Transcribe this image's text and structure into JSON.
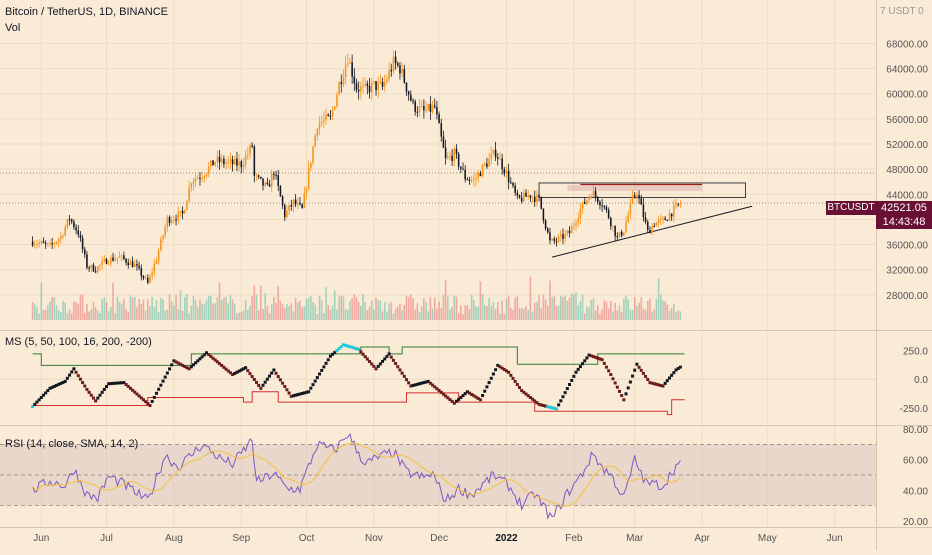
{
  "header": {
    "symbol_title": "Bitcoin / TetherUS, 1D, BINANCE",
    "vol_label": "Vol",
    "currency_label": "USDT"
  },
  "indicators": {
    "ms_label": "MS (5, 50, 100, 16, 200, -200)",
    "rsi_label": "RSI (14, close, SMA, 14, 2)"
  },
  "last_price": {
    "tag": "BTCUSDT",
    "value": "42521.05",
    "countdown": "14:43:48"
  },
  "colors": {
    "background": "#faebd7",
    "candle_up": "#f7941d",
    "candle_down": "#131722",
    "vol_up": "#5dbba4",
    "vol_down": "#e57373",
    "ms_upper": "#2e7d32",
    "ms_lower": "#d32f2f",
    "rsi_line": "#7e57c2",
    "rsi_ma": "#f5c33b",
    "highlight": "#26c6da",
    "price_tag": "#6b1035"
  },
  "chart_data": [
    {
      "type": "candlestick",
      "title": "Bitcoin / TetherUS, 1D, BINANCE",
      "y_axis_ticks": [
        "68000.00",
        "64000.00",
        "60000.00",
        "56000.00",
        "52000.00",
        "48000.00",
        "44000.00",
        "40000.00",
        "36000.00",
        "32000.00",
        "28000.00"
      ],
      "x_axis_ticks": [
        "Jun",
        "Jul",
        "Aug",
        "Sep",
        "Oct",
        "Nov",
        "Dec",
        "2022",
        "Feb",
        "Mar",
        "Apr",
        "May",
        "Jun"
      ],
      "ylim": [
        24000,
        73000
      ],
      "close_path": [
        [
          "2021-05-28",
          36500
        ],
        [
          "2021-06-05",
          35700
        ],
        [
          "2021-06-10",
          37300
        ],
        [
          "2021-06-14",
          40200
        ],
        [
          "2021-06-18",
          37900
        ],
        [
          "2021-06-22",
          32600
        ],
        [
          "2021-06-26",
          32100
        ],
        [
          "2021-07-01",
          33500
        ],
        [
          "2021-07-07",
          34000
        ],
        [
          "2021-07-14",
          32700
        ],
        [
          "2021-07-20",
          29800
        ],
        [
          "2021-07-24",
          33800
        ],
        [
          "2021-07-29",
          40000
        ],
        [
          "2021-08-05",
          40800
        ],
        [
          "2021-08-09",
          46300
        ],
        [
          "2021-08-14",
          47100
        ],
        [
          "2021-08-20",
          49300
        ],
        [
          "2021-08-27",
          48900
        ],
        [
          "2021-09-01",
          48800
        ],
        [
          "2021-09-06",
          51700
        ],
        [
          "2021-09-07",
          46800
        ],
        [
          "2021-09-13",
          44900
        ],
        [
          "2021-09-16",
          47700
        ],
        [
          "2021-09-21",
          40700
        ],
        [
          "2021-09-25",
          42700
        ],
        [
          "2021-09-29",
          41500
        ],
        [
          "2021-10-02",
          47600
        ],
        [
          "2021-10-06",
          55300
        ],
        [
          "2021-10-12",
          56000
        ],
        [
          "2021-10-16",
          61500
        ],
        [
          "2021-10-20",
          65900
        ],
        [
          "2021-10-24",
          61000
        ],
        [
          "2021-10-28",
          60600
        ],
        [
          "2021-11-01",
          61300
        ],
        [
          "2021-11-05",
          61000
        ],
        [
          "2021-11-10",
          64900
        ],
        [
          "2021-11-13",
          64100
        ],
        [
          "2021-11-19",
          58100
        ],
        [
          "2021-11-24",
          57100
        ],
        [
          "2021-11-29",
          57800
        ],
        [
          "2021-12-04",
          49400
        ],
        [
          "2021-12-08",
          50400
        ],
        [
          "2021-12-13",
          46700
        ],
        [
          "2021-12-17",
          46200
        ],
        [
          "2021-12-22",
          48600
        ],
        [
          "2021-12-27",
          50700
        ],
        [
          "2022-01-01",
          47300
        ],
        [
          "2022-01-06",
          43100
        ],
        [
          "2022-01-12",
          43900
        ],
        [
          "2022-01-16",
          43100
        ],
        [
          "2022-01-21",
          36400
        ],
        [
          "2022-01-24",
          36600
        ],
        [
          "2022-01-30",
          37900
        ],
        [
          "2022-02-04",
          41600
        ],
        [
          "2022-02-09",
          44400
        ],
        [
          "2022-02-14",
          42600
        ],
        [
          "2022-02-17",
          40500
        ],
        [
          "2022-02-21",
          37000
        ],
        [
          "2022-02-24",
          38300
        ],
        [
          "2022-02-28",
          43200
        ],
        [
          "2022-03-02",
          44400
        ],
        [
          "2022-03-07",
          38000
        ],
        [
          "2022-03-10",
          39400
        ],
        [
          "2022-03-14",
          39700
        ],
        [
          "2022-03-18",
          41200
        ],
        [
          "2022-03-22",
          42521
        ]
      ],
      "horizontal_levels": [
        47400,
        42600
      ],
      "resistance_box": [
        43500,
        45800
      ],
      "triangle_support": [
        [
          "2022-01-22",
          34000
        ],
        [
          "2022-04-24",
          42100
        ]
      ]
    },
    {
      "type": "line",
      "title": "MS (5, 50, 100, 16, 200, -200)",
      "y_axis_ticks": [
        "250.0",
        "0.0",
        "-250.0"
      ],
      "ylim": [
        -400,
        420
      ],
      "upper_band_steps": [
        [
          "2021-05-28",
          220
        ],
        [
          "2021-06-01",
          120
        ],
        [
          "2021-08-09",
          220
        ],
        [
          "2021-10-24",
          220
        ],
        [
          "2021-10-26",
          280
        ],
        [
          "2021-11-08",
          220
        ],
        [
          "2021-11-14",
          280
        ],
        [
          "2022-01-04",
          280
        ],
        [
          "2022-01-06",
          130
        ],
        [
          "2022-02-12",
          220
        ],
        [
          "2022-03-24",
          220
        ]
      ],
      "lower_band_steps": [
        [
          "2021-05-28",
          -230
        ],
        [
          "2021-07-20",
          -160
        ],
        [
          "2021-09-02",
          -200
        ],
        [
          "2021-09-06",
          -110
        ],
        [
          "2021-09-18",
          -200
        ],
        [
          "2021-11-16",
          -120
        ],
        [
          "2021-12-10",
          -200
        ],
        [
          "2022-01-14",
          -280
        ],
        [
          "2022-03-16",
          -310
        ],
        [
          "2022-03-18",
          -180
        ],
        [
          "2022-03-24",
          -180
        ]
      ],
      "oscillator_waypoints": [
        [
          "2021-05-28",
          -240
        ],
        [
          "2021-06-05",
          -80
        ],
        [
          "2021-06-12",
          -20
        ],
        [
          "2021-06-16",
          90
        ],
        [
          "2021-06-22",
          -90
        ],
        [
          "2021-06-26",
          -190
        ],
        [
          "2021-07-02",
          -40
        ],
        [
          "2021-07-09",
          -30
        ],
        [
          "2021-07-21",
          -230
        ],
        [
          "2021-08-01",
          160
        ],
        [
          "2021-08-08",
          90
        ],
        [
          "2021-08-16",
          230
        ],
        [
          "2021-08-28",
          40
        ],
        [
          "2021-09-03",
          100
        ],
        [
          "2021-09-10",
          -80
        ],
        [
          "2021-09-16",
          80
        ],
        [
          "2021-09-24",
          -150
        ],
        [
          "2021-10-02",
          -110
        ],
        [
          "2021-10-12",
          200
        ],
        [
          "2021-10-18",
          300
        ],
        [
          "2021-10-25",
          260
        ],
        [
          "2021-11-02",
          90
        ],
        [
          "2021-11-08",
          220
        ],
        [
          "2021-11-18",
          -60
        ],
        [
          "2021-11-26",
          -20
        ],
        [
          "2021-12-08",
          -210
        ],
        [
          "2021-12-14",
          -110
        ],
        [
          "2021-12-20",
          -180
        ],
        [
          "2021-12-28",
          120
        ],
        [
          "2022-01-02",
          60
        ],
        [
          "2022-01-08",
          -100
        ],
        [
          "2022-01-16",
          -220
        ],
        [
          "2022-01-24",
          -260
        ],
        [
          "2022-02-02",
          60
        ],
        [
          "2022-02-08",
          210
        ],
        [
          "2022-02-14",
          170
        ],
        [
          "2022-02-18",
          40
        ],
        [
          "2022-02-24",
          -180
        ],
        [
          "2022-03-02",
          130
        ],
        [
          "2022-03-08",
          -30
        ],
        [
          "2022-03-14",
          -60
        ],
        [
          "2022-03-20",
          80
        ],
        [
          "2022-03-24",
          130
        ]
      ]
    },
    {
      "type": "line",
      "title": "RSI (14, close, SMA, 14, 2)",
      "y_axis_ticks": [
        "80.00",
        "60.00",
        "40.00",
        "20.00"
      ],
      "ylim": [
        16,
        82
      ],
      "bands": [
        70,
        50,
        30
      ],
      "rsi_waypoints": [
        [
          "2021-05-28",
          40
        ],
        [
          "2021-06-05",
          46
        ],
        [
          "2021-06-12",
          43
        ],
        [
          "2021-06-16",
          54
        ],
        [
          "2021-06-22",
          37
        ],
        [
          "2021-06-27",
          35
        ],
        [
          "2021-07-02",
          49
        ],
        [
          "2021-07-09",
          44
        ],
        [
          "2021-07-20",
          33
        ],
        [
          "2021-07-28",
          63
        ],
        [
          "2021-08-03",
          55
        ],
        [
          "2021-08-14",
          70
        ],
        [
          "2021-08-22",
          61
        ],
        [
          "2021-08-28",
          57
        ],
        [
          "2021-09-06",
          73
        ],
        [
          "2021-09-08",
          45
        ],
        [
          "2021-09-16",
          51
        ],
        [
          "2021-09-22",
          41
        ],
        [
          "2021-09-28",
          41
        ],
        [
          "2021-10-06",
          70
        ],
        [
          "2021-10-14",
          66
        ],
        [
          "2021-10-20",
          77
        ],
        [
          "2021-10-28",
          57
        ],
        [
          "2021-11-02",
          61
        ],
        [
          "2021-11-10",
          65
        ],
        [
          "2021-11-16",
          52
        ],
        [
          "2021-11-24",
          48
        ],
        [
          "2021-11-28",
          51
        ],
        [
          "2021-12-04",
          33
        ],
        [
          "2021-12-10",
          41
        ],
        [
          "2021-12-16",
          37
        ],
        [
          "2021-12-26",
          50
        ],
        [
          "2022-01-02",
          43
        ],
        [
          "2022-01-08",
          30
        ],
        [
          "2022-01-14",
          38
        ],
        [
          "2022-01-22",
          21
        ],
        [
          "2022-01-28",
          36
        ],
        [
          "2022-02-04",
          49
        ],
        [
          "2022-02-10",
          64
        ],
        [
          "2022-02-14",
          55
        ],
        [
          "2022-02-18",
          50
        ],
        [
          "2022-02-24",
          35
        ],
        [
          "2022-03-01",
          60
        ],
        [
          "2022-03-06",
          45
        ],
        [
          "2022-03-14",
          43
        ],
        [
          "2022-03-20",
          56
        ],
        [
          "2022-03-24",
          57
        ]
      ]
    }
  ]
}
